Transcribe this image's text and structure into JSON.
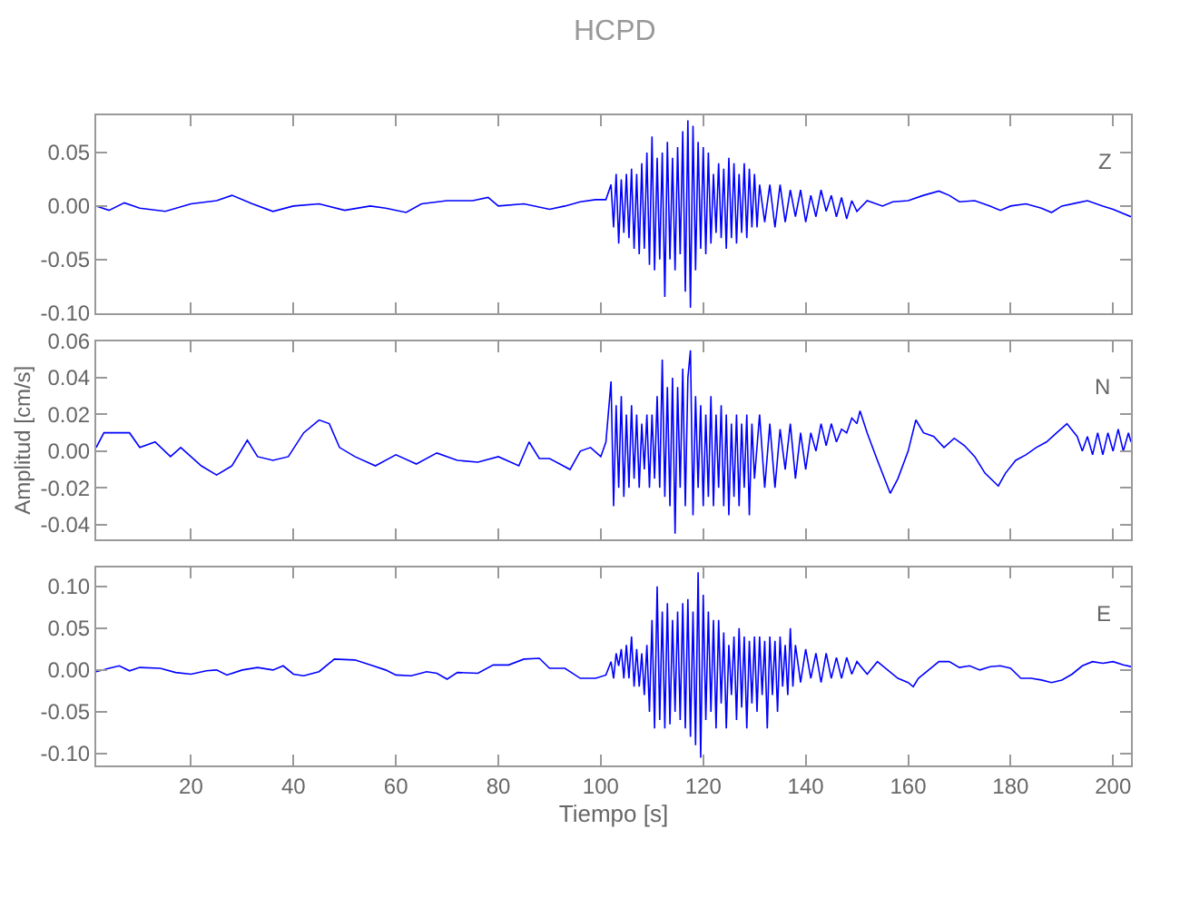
{
  "chart_data": [
    {
      "type": "line",
      "title": "HCPD",
      "annotations": [
        "Z"
      ],
      "tick_labels": "y",
      "xlim": [
        1.5,
        203.5
      ],
      "xticks": [
        20,
        40,
        60,
        80,
        100,
        120,
        140,
        160,
        180,
        200
      ],
      "ylim": [
        -0.1,
        0.085
      ],
      "yticks": [
        {
          "value": -0.1,
          "label": "-0.10"
        },
        {
          "value": -0.05,
          "label": "-0.05"
        },
        {
          "value": 0,
          "label": "0.00"
        },
        {
          "value": 0.05,
          "label": "0.05"
        }
      ],
      "series": [
        {
          "color": "#0000ff",
          "x": [
            1.5,
            4,
            7,
            10,
            15,
            20,
            25,
            28,
            32,
            36,
            40,
            45,
            50,
            55,
            58,
            62,
            65,
            70,
            75,
            78,
            80,
            85,
            90,
            93,
            96,
            99,
            101,
            102,
            102.5,
            103,
            103.5,
            104,
            104.5,
            105,
            105.5,
            106,
            106.5,
            107,
            107.5,
            108,
            108.5,
            109,
            109.5,
            110,
            110.5,
            111,
            111.5,
            112,
            112.5,
            113,
            113.5,
            114,
            114.5,
            115,
            115.5,
            116,
            116.5,
            117,
            117.5,
            118,
            118.5,
            119,
            119.5,
            120,
            120.5,
            121,
            121.5,
            122,
            122.5,
            123,
            123.5,
            124,
            124.5,
            125,
            125.5,
            126,
            126.5,
            127,
            127.5,
            128,
            128.5,
            129,
            129.5,
            130,
            130.5,
            131,
            132,
            133,
            134,
            135,
            136,
            137,
            138,
            139,
            140,
            141,
            142,
            143,
            144,
            145,
            146,
            147,
            148,
            149,
            150,
            152,
            155,
            157,
            160,
            163,
            166,
            168,
            170,
            173,
            176,
            178,
            180,
            183,
            186,
            188,
            190,
            193,
            195,
            198,
            200,
            203.5
          ],
          "values": [
            0,
            -0.004,
            0.003,
            -0.002,
            -0.005,
            0.002,
            0.005,
            0.01,
            0.002,
            -0.005,
            0,
            0.002,
            -0.004,
            0,
            -0.002,
            -0.006,
            0.002,
            0.005,
            0.005,
            0.008,
            0,
            0.002,
            -0.003,
            0,
            0.004,
            0.006,
            0.006,
            0.02,
            -0.02,
            0.03,
            -0.035,
            0.025,
            -0.025,
            0.03,
            -0.03,
            0.035,
            -0.04,
            0.03,
            -0.045,
            0.04,
            -0.04,
            0.05,
            -0.055,
            0.065,
            -0.06,
            0.045,
            -0.05,
            0.05,
            -0.085,
            0.06,
            -0.05,
            0.045,
            -0.06,
            0.055,
            -0.045,
            0.07,
            -0.08,
            0.08,
            -0.095,
            0.075,
            -0.06,
            0.06,
            -0.04,
            0.055,
            -0.045,
            0.05,
            -0.035,
            0.03,
            -0.025,
            0.04,
            -0.03,
            0.035,
            -0.04,
            0.045,
            -0.03,
            0.04,
            -0.035,
            0.03,
            -0.025,
            0.04,
            -0.03,
            0.035,
            -0.02,
            0.03,
            -0.02,
            0.02,
            -0.015,
            0.02,
            -0.02,
            0.02,
            -0.015,
            0.015,
            -0.01,
            0.015,
            -0.015,
            0.01,
            -0.01,
            0.015,
            -0.005,
            0.01,
            -0.01,
            0.008,
            -0.012,
            0.005,
            -0.005,
            0.005,
            0,
            0.004,
            0.005,
            0.01,
            0.014,
            0.01,
            0.004,
            0.005,
            0,
            -0.004,
            0,
            0.002,
            -0.002,
            -0.006,
            0,
            0.003,
            0.005,
            0,
            -0.003,
            -0.01
          ]
        }
      ]
    },
    {
      "type": "line",
      "ylabel": "Amplitud [cm/s]",
      "annotations": [
        "N"
      ],
      "tick_labels": "y",
      "xlim": [
        1.5,
        203.5
      ],
      "xticks": [
        20,
        40,
        60,
        80,
        100,
        120,
        140,
        160,
        180,
        200
      ],
      "ylim": [
        -0.048,
        0.06
      ],
      "yticks": [
        {
          "value": -0.04,
          "label": "-0.04"
        },
        {
          "value": -0.02,
          "label": "-0.02"
        },
        {
          "value": 0,
          "label": "0.00"
        },
        {
          "value": 0.02,
          "label": "0.02"
        },
        {
          "value": 0.04,
          "label": "0.04"
        },
        {
          "value": 0.06,
          "label": "0.06"
        }
      ],
      "series": [
        {
          "color": "#0000ff",
          "x": [
            1.5,
            3,
            8,
            10,
            13,
            16,
            18,
            22,
            25,
            28,
            31,
            33,
            36,
            39,
            42,
            45,
            47,
            49,
            52,
            56,
            60,
            64,
            68,
            72,
            76,
            80,
            84,
            86,
            88,
            90,
            94,
            96,
            98,
            100,
            101,
            102,
            102.5,
            103,
            103.5,
            104,
            104.5,
            105,
            105.5,
            106,
            106.5,
            107,
            107.5,
            108,
            108.5,
            109,
            109.5,
            110,
            110.5,
            111,
            111.5,
            112,
            112.5,
            113,
            113.5,
            114,
            114.5,
            115,
            115.5,
            116,
            116.5,
            117,
            117.5,
            118,
            118.5,
            119,
            119.5,
            120,
            120.5,
            121,
            121.5,
            122,
            122.5,
            123,
            123.5,
            124,
            124.5,
            125,
            125.5,
            126,
            126.5,
            127,
            127.5,
            128,
            128.5,
            129,
            129.5,
            130,
            131,
            132,
            133,
            134,
            135,
            136,
            137,
            138,
            139,
            140,
            141,
            142,
            143,
            144,
            145,
            146,
            147,
            148,
            149,
            150,
            150.6,
            152,
            154,
            156.5,
            158,
            160,
            161.5,
            163,
            165,
            167,
            169,
            171,
            173,
            175,
            177.6,
            179,
            181,
            183,
            185,
            187,
            189,
            191,
            193,
            194,
            195,
            196,
            197,
            198,
            199,
            200,
            201,
            202,
            203,
            203.5
          ],
          "values": [
            0.002,
            0.01,
            0.01,
            0.002,
            0.005,
            -0.003,
            0.002,
            -0.008,
            -0.013,
            -0.008,
            0.006,
            -0.003,
            -0.005,
            -0.003,
            0.01,
            0.017,
            0.015,
            0.002,
            -0.003,
            -0.008,
            -0.002,
            -0.007,
            -0.001,
            -0.005,
            -0.006,
            -0.003,
            -0.008,
            0.005,
            -0.004,
            -0.004,
            -0.01,
            0,
            0.002,
            -0.003,
            0.005,
            0.038,
            -0.03,
            0.025,
            -0.02,
            0.03,
            -0.025,
            0.02,
            -0.02,
            0.025,
            -0.015,
            0.02,
            -0.02,
            0.015,
            -0.01,
            0.02,
            -0.02,
            0.02,
            -0.015,
            0.03,
            -0.02,
            0.05,
            -0.025,
            0.035,
            -0.03,
            0.04,
            -0.045,
            0.035,
            -0.02,
            0.045,
            -0.03,
            0.04,
            0.055,
            -0.035,
            0.03,
            -0.02,
            0.025,
            -0.03,
            0.02,
            -0.025,
            0.03,
            -0.03,
            0.02,
            -0.02,
            0.025,
            -0.03,
            0.02,
            -0.035,
            0.015,
            -0.025,
            0.02,
            -0.03,
            0.015,
            -0.02,
            0.02,
            -0.035,
            0.015,
            -0.015,
            0.02,
            -0.02,
            0.015,
            -0.02,
            0.012,
            -0.01,
            0.015,
            -0.015,
            0.01,
            -0.01,
            0.01,
            0,
            0.015,
            0.003,
            0.015,
            0.005,
            0.012,
            0.01,
            0.018,
            0.015,
            0.022,
            0.01,
            -0.005,
            -0.023,
            -0.015,
            0,
            0.017,
            0.01,
            0.008,
            0.002,
            0.007,
            0.003,
            -0.003,
            -0.012,
            -0.019,
            -0.012,
            -0.005,
            -0.002,
            0.002,
            0.005,
            0.01,
            0.015,
            0.008,
            0,
            0.008,
            -0.002,
            0.01,
            -0.002,
            0.01,
            0,
            0.012,
            0,
            0.01,
            0.005
          ]
        }
      ]
    },
    {
      "type": "line",
      "xlabel": "Tiempo [s]",
      "annotations": [
        "E"
      ],
      "xlim": [
        1.5,
        203.5
      ],
      "xticks": [
        20,
        40,
        60,
        80,
        100,
        120,
        140,
        160,
        180,
        200
      ],
      "ylim": [
        -0.114,
        0.123
      ],
      "yticks": [
        {
          "value": -0.1,
          "label": "-0.10"
        },
        {
          "value": -0.05,
          "label": "-0.05"
        },
        {
          "value": 0,
          "label": "0.00"
        },
        {
          "value": 0.05,
          "label": "0.05"
        },
        {
          "value": 0.1,
          "label": "0.10"
        }
      ],
      "series": [
        {
          "color": "#0000ff",
          "x": [
            1.5,
            4,
            6,
            8,
            10,
            14,
            17,
            20,
            23,
            25,
            27,
            30,
            33,
            36,
            38,
            40,
            42,
            45,
            48,
            52,
            55,
            58,
            60,
            63,
            66,
            68,
            70,
            72,
            76,
            79,
            82,
            85,
            88,
            90,
            93,
            96,
            99,
            101,
            102,
            102.5,
            103,
            103.5,
            104,
            104.5,
            105,
            105.5,
            106,
            106.5,
            107,
            107.5,
            108,
            108.5,
            109,
            109.5,
            110,
            110.5,
            111,
            111.5,
            112,
            112.5,
            113,
            113.5,
            114,
            114.5,
            115,
            115.5,
            116,
            116.5,
            117,
            117.5,
            118,
            118.5,
            119,
            119.5,
            120,
            120.5,
            121,
            121.5,
            122,
            122.5,
            123,
            123.5,
            124,
            124.5,
            125,
            125.5,
            126,
            126.5,
            127,
            127.5,
            128,
            128.5,
            129,
            129.5,
            130,
            130.5,
            131,
            131.5,
            132,
            132.5,
            133,
            133.5,
            134,
            134.5,
            135,
            135.5,
            136,
            136.5,
            137,
            137.5,
            138,
            139,
            140,
            141,
            142,
            143,
            144,
            145,
            146,
            147,
            148,
            149,
            150,
            152,
            154,
            156,
            158,
            160,
            161,
            162,
            164,
            166,
            168,
            170,
            172,
            174,
            176,
            178,
            180,
            182,
            184,
            186,
            188,
            190,
            192,
            194,
            196,
            198,
            200,
            202,
            203.5
          ],
          "values": [
            -0.002,
            0.002,
            0.005,
            -0.001,
            0.003,
            0.002,
            -0.003,
            -0.005,
            -0.001,
            0,
            -0.006,
            0,
            0.003,
            0,
            0.005,
            -0.005,
            -0.007,
            -0.002,
            0.013,
            0.012,
            0.006,
            0,
            -0.006,
            -0.007,
            -0.002,
            -0.004,
            -0.011,
            -0.003,
            -0.004,
            0.006,
            0.006,
            0.013,
            0.014,
            0.002,
            0.002,
            -0.01,
            -0.01,
            -0.006,
            0.01,
            -0.01,
            0.02,
            0.005,
            0.025,
            -0.01,
            0.03,
            -0.01,
            0.04,
            -0.02,
            0.025,
            -0.02,
            0.02,
            -0.03,
            0.03,
            -0.05,
            0.06,
            -0.07,
            0.1,
            -0.06,
            0.07,
            -0.07,
            0.08,
            -0.065,
            0.06,
            -0.05,
            0.07,
            -0.06,
            0.08,
            -0.07,
            0.085,
            -0.08,
            0.07,
            -0.09,
            0.117,
            -0.105,
            0.09,
            -0.06,
            0.07,
            -0.05,
            0.06,
            -0.07,
            0.06,
            -0.04,
            0.045,
            -0.07,
            0.03,
            -0.03,
            0.04,
            -0.06,
            0.05,
            -0.045,
            0.04,
            -0.07,
            0.035,
            -0.04,
            0.04,
            -0.05,
            0.04,
            -0.03,
            0.035,
            -0.07,
            0.04,
            -0.03,
            0.035,
            -0.05,
            0.04,
            -0.02,
            0.03,
            -0.03,
            0.05,
            -0.02,
            0.03,
            -0.015,
            0.025,
            -0.01,
            0.02,
            -0.015,
            0.02,
            -0.01,
            0.015,
            -0.01,
            0.015,
            -0.005,
            0.01,
            -0.005,
            0.01,
            0,
            -0.01,
            -0.015,
            -0.02,
            -0.01,
            0,
            0.01,
            0.01,
            0.003,
            0.005,
            0,
            0.004,
            0.005,
            0.002,
            -0.01,
            -0.01,
            -0.012,
            -0.015,
            -0.012,
            -0.005,
            0.005,
            0.01,
            0.008,
            0.01,
            0.006,
            0.004
          ]
        }
      ]
    }
  ]
}
